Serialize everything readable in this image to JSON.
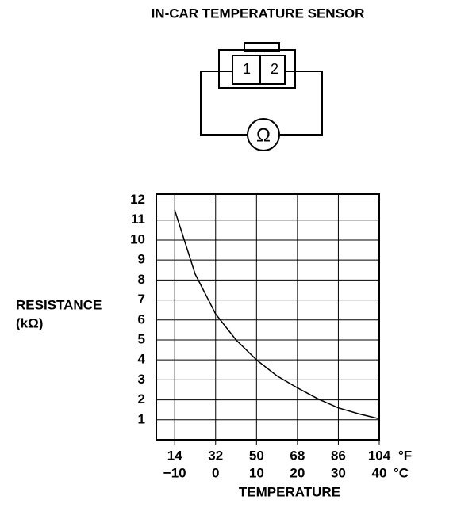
{
  "diagram": {
    "pins": [
      "1",
      "2"
    ],
    "meter": "Ω"
  },
  "chart_data": {
    "type": "line",
    "title": "IN-CAR TEMPERATURE SENSOR",
    "y_label": [
      "RESISTANCE",
      "(kΩ)"
    ],
    "x_label": "TEMPERATURE",
    "x": [
      -10,
      -5,
      0,
      5,
      10,
      15,
      20,
      25,
      30,
      35,
      40
    ],
    "series": [
      {
        "name": "Resistance",
        "color": "#000000",
        "values": [
          11.5,
          8.3,
          6.3,
          5.0,
          4.0,
          3.2,
          2.6,
          2.05,
          1.6,
          1.3,
          1.05
        ]
      }
    ],
    "xlim": [
      -14.5,
      40
    ],
    "ylim": [
      0,
      12.3
    ],
    "xticks": [
      {
        "value": -10,
        "label": "−10"
      },
      0,
      10,
      20,
      30,
      40
    ],
    "x2ticks": [
      {
        "value": -10,
        "label": "14"
      },
      {
        "value": 0,
        "label": "32"
      },
      {
        "value": 10,
        "label": "50"
      },
      {
        "value": 20,
        "label": "68"
      },
      {
        "value": 30,
        "label": "86"
      },
      {
        "value": 40,
        "label": "104"
      }
    ],
    "x_units": [
      "°F",
      "°C"
    ],
    "yticks": [
      1,
      2,
      3,
      4,
      5,
      6,
      7,
      8,
      9,
      10,
      11,
      12
    ],
    "grid": true
  }
}
